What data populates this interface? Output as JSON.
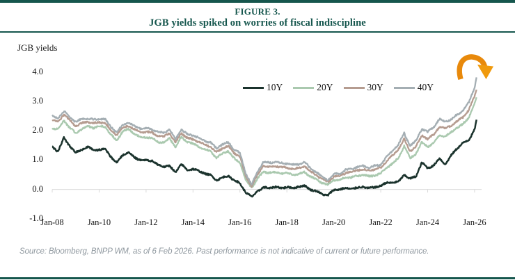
{
  "figure": {
    "label": "FIGURE 3.",
    "title": "JGB yields spiked on worries of fiscal indiscipline"
  },
  "chart": {
    "axis_title": "JGB yields",
    "y_tick_labels": [
      "4.0",
      "3.0",
      "2.0",
      "1.0",
      "0.0",
      "-1.0"
    ],
    "x_tick_labels": [
      "Jan-08",
      "Jan-10",
      "Jan-12",
      "Jan-14",
      "Jan-16",
      "Jan-18",
      "Jan-20",
      "Jan-22",
      "Jan-24",
      "Jan-26"
    ]
  },
  "legend": {
    "items": [
      {
        "label": "10Y",
        "color": "#1B332D"
      },
      {
        "label": "20Y",
        "color": "#AAC9AF"
      },
      {
        "label": "30Y",
        "color": "#B59C90"
      },
      {
        "label": "40Y",
        "color": "#A4AEB3"
      }
    ]
  },
  "annotation_arrow": {
    "meaning": "curved arrow highlighting the late-2025 / early-2026 spike in long-end JGB yields",
    "color": "#E8890B"
  },
  "source": {
    "text": "Source: Bloomberg, BNPP WM, as of 6 Feb 2026. Past performance is not indicative of current or future performance."
  },
  "colors": {
    "header_teal": "#15564D",
    "axis_line": "#D9D9D9",
    "tick_text": "#141414",
    "source_text": "#8F989F",
    "background": "#FFFFFF"
  },
  "chart_data": {
    "type": "line",
    "title": "JGB yields",
    "xlabel": "",
    "ylabel": "JGB yield (%)",
    "ylim": [
      -1.0,
      4.0
    ],
    "y_ticks": [
      4.0,
      3.0,
      2.0,
      1.0,
      0.0,
      -1.0
    ],
    "x_unit": "decimal year (Jan-08 through Feb-26)",
    "grid": false,
    "legend_position": "top-center",
    "x": [
      2008.0,
      2008.25,
      2008.5,
      2008.75,
      2009.0,
      2009.25,
      2009.5,
      2009.75,
      2010.0,
      2010.25,
      2010.5,
      2010.75,
      2011.0,
      2011.25,
      2011.5,
      2011.75,
      2012.0,
      2012.25,
      2012.5,
      2012.75,
      2013.0,
      2013.25,
      2013.5,
      2013.75,
      2014.0,
      2014.25,
      2014.5,
      2014.75,
      2015.0,
      2015.25,
      2015.5,
      2015.75,
      2016.0,
      2016.25,
      2016.5,
      2016.75,
      2017.0,
      2017.25,
      2017.5,
      2017.75,
      2018.0,
      2018.25,
      2018.5,
      2018.75,
      2019.0,
      2019.25,
      2019.5,
      2019.75,
      2020.0,
      2020.25,
      2020.5,
      2020.75,
      2021.0,
      2021.25,
      2021.5,
      2021.75,
      2022.0,
      2022.25,
      2022.5,
      2022.75,
      2023.0,
      2023.25,
      2023.5,
      2023.75,
      2024.0,
      2024.25,
      2024.5,
      2024.75,
      2025.0,
      2025.25,
      2025.5,
      2025.75,
      2026.0,
      2026.08
    ],
    "series": [
      {
        "name": "10Y",
        "color": "#1B332D",
        "values": [
          1.45,
          1.3,
          1.75,
          1.48,
          1.25,
          1.35,
          1.45,
          1.35,
          1.35,
          1.38,
          1.12,
          0.9,
          1.18,
          1.25,
          1.1,
          1.0,
          1.0,
          0.98,
          0.84,
          0.78,
          0.8,
          0.58,
          0.86,
          0.66,
          0.7,
          0.62,
          0.55,
          0.48,
          0.32,
          0.4,
          0.46,
          0.32,
          0.2,
          -0.1,
          -0.26,
          -0.06,
          0.06,
          0.05,
          0.08,
          0.05,
          0.08,
          0.04,
          0.1,
          0.12,
          0.0,
          -0.06,
          -0.16,
          -0.2,
          -0.02,
          0.01,
          0.03,
          0.03,
          0.05,
          0.09,
          0.04,
          0.07,
          0.13,
          0.22,
          0.24,
          0.25,
          0.5,
          0.36,
          0.44,
          0.92,
          0.72,
          0.82,
          1.05,
          0.86,
          1.15,
          1.4,
          1.58,
          1.68,
          2.05,
          2.38
        ]
      },
      {
        "name": "20Y",
        "color": "#AAC9AF",
        "values": [
          2.1,
          2.05,
          2.35,
          2.1,
          1.92,
          2.05,
          2.15,
          2.1,
          2.15,
          2.14,
          1.88,
          1.65,
          1.98,
          2.05,
          1.9,
          1.78,
          1.78,
          1.75,
          1.62,
          1.6,
          1.74,
          1.45,
          1.78,
          1.62,
          1.56,
          1.46,
          1.36,
          1.3,
          1.08,
          1.22,
          1.32,
          1.05,
          0.92,
          0.32,
          0.06,
          0.36,
          0.6,
          0.57,
          0.58,
          0.55,
          0.55,
          0.5,
          0.52,
          0.6,
          0.44,
          0.34,
          0.22,
          0.16,
          0.32,
          0.33,
          0.4,
          0.41,
          0.46,
          0.5,
          0.44,
          0.48,
          0.54,
          0.74,
          0.88,
          1.06,
          1.48,
          1.06,
          1.22,
          1.6,
          1.46,
          1.58,
          1.85,
          1.8,
          1.95,
          2.1,
          2.22,
          2.45,
          2.92,
          3.14
        ]
      },
      {
        "name": "30Y",
        "color": "#B59C90",
        "values": [
          2.36,
          2.3,
          2.56,
          2.35,
          2.16,
          2.26,
          2.3,
          2.26,
          2.28,
          2.27,
          2.02,
          1.85,
          2.1,
          2.17,
          2.05,
          1.96,
          1.96,
          1.94,
          1.82,
          1.8,
          1.92,
          1.6,
          1.92,
          1.76,
          1.7,
          1.62,
          1.52,
          1.46,
          1.26,
          1.4,
          1.48,
          1.24,
          1.12,
          0.44,
          0.1,
          0.5,
          0.8,
          0.77,
          0.8,
          0.76,
          0.74,
          0.7,
          0.72,
          0.8,
          0.6,
          0.5,
          0.34,
          0.26,
          0.44,
          0.46,
          0.56,
          0.6,
          0.66,
          0.68,
          0.64,
          0.68,
          0.74,
          0.96,
          1.16,
          1.36,
          1.72,
          1.3,
          1.46,
          1.84,
          1.72,
          1.86,
          2.14,
          2.08,
          2.18,
          2.32,
          2.46,
          2.7,
          3.18,
          3.4
        ]
      },
      {
        "name": "40Y",
        "color": "#A4AEB3",
        "values": [
          2.5,
          2.44,
          2.66,
          2.46,
          2.3,
          2.4,
          2.42,
          2.38,
          2.4,
          2.39,
          2.14,
          1.95,
          2.2,
          2.27,
          2.16,
          2.08,
          2.08,
          2.06,
          1.96,
          1.94,
          2.05,
          1.7,
          2.04,
          1.88,
          1.84,
          1.76,
          1.66,
          1.6,
          1.4,
          1.54,
          1.6,
          1.36,
          1.24,
          0.54,
          0.16,
          0.6,
          0.94,
          0.9,
          0.94,
          0.9,
          0.88,
          0.84,
          0.85,
          0.94,
          0.72,
          0.6,
          0.42,
          0.32,
          0.52,
          0.55,
          0.66,
          0.7,
          0.76,
          0.8,
          0.74,
          0.8,
          0.84,
          1.1,
          1.32,
          1.52,
          1.92,
          1.48,
          1.66,
          2.06,
          1.96,
          2.12,
          2.4,
          2.32,
          2.38,
          2.55,
          2.68,
          2.95,
          3.48,
          3.82
        ]
      }
    ],
    "annotations": [
      {
        "type": "arrow",
        "shape": "arc-down",
        "color": "#E8890B",
        "x": 2025.6,
        "note": "points at final yield spike"
      }
    ]
  }
}
